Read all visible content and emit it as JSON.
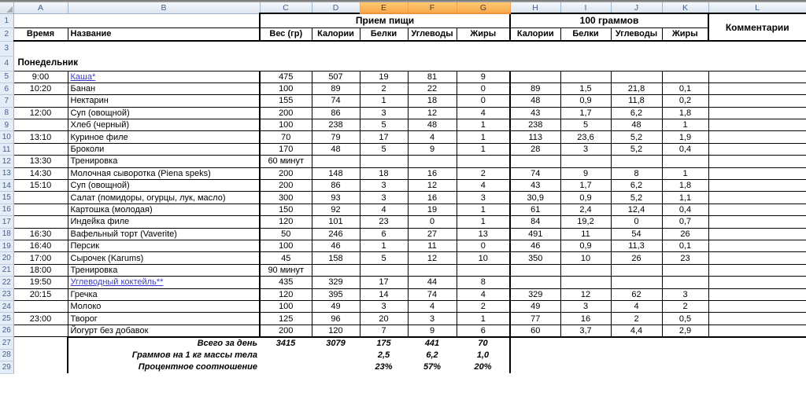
{
  "colors": {
    "selected_column_header": "#f9a94c",
    "header_chrome_border": "#9eb6ce",
    "header_chrome_text": "#44618e",
    "hyperlink": "#3a3ad3",
    "grid_border": "#000000"
  },
  "sheet": {
    "column_letters": [
      "A",
      "B",
      "C",
      "D",
      "E",
      "F",
      "G",
      "H",
      "I",
      "J",
      "K",
      "L"
    ],
    "selected_columns": [
      "E",
      "F",
      "G"
    ],
    "row_count": 29,
    "groups": {
      "meal": "Прием пищи",
      "per100": "100 граммов",
      "comments": "Комментарии"
    },
    "subheaders_row": [
      "Время",
      "Название",
      "Вес (гр)",
      "Калории",
      "Белки",
      "Углеводы",
      "Жиры",
      "Калории",
      "Белки",
      "Углеводы",
      "Жиры"
    ],
    "day": "Понедельник",
    "entries": [
      {
        "row": 5,
        "time": "9:00",
        "name": "Каша*",
        "link": true,
        "cells": [
          "475",
          "507",
          "19",
          "81",
          "9",
          "",
          "",
          "",
          ""
        ]
      },
      {
        "row": 6,
        "time": "10:20",
        "name": "Банан",
        "link": false,
        "cells": [
          "100",
          "89",
          "2",
          "22",
          "0",
          "89",
          "1,5",
          "21,8",
          "0,1"
        ]
      },
      {
        "row": 7,
        "time": "",
        "name": "Нектарин",
        "link": false,
        "cells": [
          "155",
          "74",
          "1",
          "18",
          "0",
          "48",
          "0,9",
          "11,8",
          "0,2"
        ]
      },
      {
        "row": 8,
        "time": "12:00",
        "name": "Суп (овощной)",
        "link": false,
        "cells": [
          "200",
          "86",
          "3",
          "12",
          "4",
          "43",
          "1,7",
          "6,2",
          "1,8"
        ]
      },
      {
        "row": 9,
        "time": "",
        "name": "Хлеб (черный)",
        "link": false,
        "cells": [
          "100",
          "238",
          "5",
          "48",
          "1",
          "238",
          "5",
          "48",
          "1"
        ]
      },
      {
        "row": 10,
        "time": "13:10",
        "name": "Куриное филе",
        "link": false,
        "cells": [
          "70",
          "79",
          "17",
          "4",
          "1",
          "113",
          "23,6",
          "5,2",
          "1,9"
        ]
      },
      {
        "row": 11,
        "time": "",
        "name": "Броколи",
        "link": false,
        "cells": [
          "170",
          "48",
          "5",
          "9",
          "1",
          "28",
          "3",
          "5,2",
          "0,4"
        ]
      },
      {
        "row": 12,
        "time": "13:30",
        "name": "Тренировка",
        "link": false,
        "cells": [
          "60 минут",
          "",
          "",
          "",
          "",
          "",
          "",
          "",
          ""
        ]
      },
      {
        "row": 13,
        "time": "14:30",
        "name": "Молочная сыворотка (Piena speks)",
        "link": false,
        "cells": [
          "200",
          "148",
          "18",
          "16",
          "2",
          "74",
          "9",
          "8",
          "1"
        ]
      },
      {
        "row": 14,
        "time": "15:10",
        "name": "Суп (овощной)",
        "link": false,
        "cells": [
          "200",
          "86",
          "3",
          "12",
          "4",
          "43",
          "1,7",
          "6,2",
          "1,8"
        ]
      },
      {
        "row": 15,
        "time": "",
        "name": "Салат (помидоры, огурцы, лук, масло)",
        "link": false,
        "cells": [
          "300",
          "93",
          "3",
          "16",
          "3",
          "30,9",
          "0,9",
          "5,2",
          "1,1"
        ]
      },
      {
        "row": 16,
        "time": "",
        "name": "Картошка (молодая)",
        "link": false,
        "cells": [
          "150",
          "92",
          "4",
          "19",
          "1",
          "61",
          "2,4",
          "12,4",
          "0,4"
        ]
      },
      {
        "row": 17,
        "time": "",
        "name": "Индейка филе",
        "link": false,
        "cells": [
          "120",
          "101",
          "23",
          "0",
          "1",
          "84",
          "19,2",
          "0",
          "0,7"
        ]
      },
      {
        "row": 18,
        "time": "16:30",
        "name": "Вафельный торт (Vaverite)",
        "link": false,
        "cells": [
          "50",
          "246",
          "6",
          "27",
          "13",
          "491",
          "11",
          "54",
          "26"
        ]
      },
      {
        "row": 19,
        "time": "16:40",
        "name": "Персик",
        "link": false,
        "cells": [
          "100",
          "46",
          "1",
          "11",
          "0",
          "46",
          "0,9",
          "11,3",
          "0,1"
        ]
      },
      {
        "row": 20,
        "time": "17:00",
        "name": "Сырочек (Karums)",
        "link": false,
        "cells": [
          "45",
          "158",
          "5",
          "12",
          "10",
          "350",
          "10",
          "26",
          "23"
        ]
      },
      {
        "row": 21,
        "time": "18:00",
        "name": "Тренировка",
        "link": false,
        "cells": [
          "90 минут",
          "",
          "",
          "",
          "",
          "",
          "",
          "",
          ""
        ]
      },
      {
        "row": 22,
        "time": "19:50",
        "name": "Углеводный коктейль**",
        "link": true,
        "cells": [
          "435",
          "329",
          "17",
          "44",
          "8",
          "",
          "",
          "",
          ""
        ]
      },
      {
        "row": 23,
        "time": "20:15",
        "name": "Гречка",
        "link": false,
        "cells": [
          "120",
          "395",
          "14",
          "74",
          "4",
          "329",
          "12",
          "62",
          "3"
        ]
      },
      {
        "row": 24,
        "time": "",
        "name": "Молоко",
        "link": false,
        "cells": [
          "100",
          "49",
          "3",
          "4",
          "2",
          "49",
          "3",
          "4",
          "2"
        ]
      },
      {
        "row": 25,
        "time": "23:00",
        "name": "Творог",
        "link": false,
        "cells": [
          "125",
          "96",
          "20",
          "3",
          "1",
          "77",
          "16",
          "2",
          "0,5"
        ]
      },
      {
        "row": 26,
        "time": "",
        "name": "Йогурт без добавок",
        "link": false,
        "cells": [
          "200",
          "120",
          "7",
          "9",
          "6",
          "60",
          "3,7",
          "4,4",
          "2,9"
        ]
      }
    ],
    "summary": [
      {
        "row": 27,
        "label": "Всего за день",
        "values": [
          "3415",
          "3079",
          "175",
          "441",
          "70"
        ]
      },
      {
        "row": 28,
        "label": "Граммов на 1 кг массы тела",
        "values": [
          "",
          "",
          "2,5",
          "6,2",
          "1,0"
        ]
      },
      {
        "row": 29,
        "label": "Процентное соотношение",
        "values": [
          "",
          "",
          "23%",
          "57%",
          "20%"
        ]
      }
    ]
  }
}
